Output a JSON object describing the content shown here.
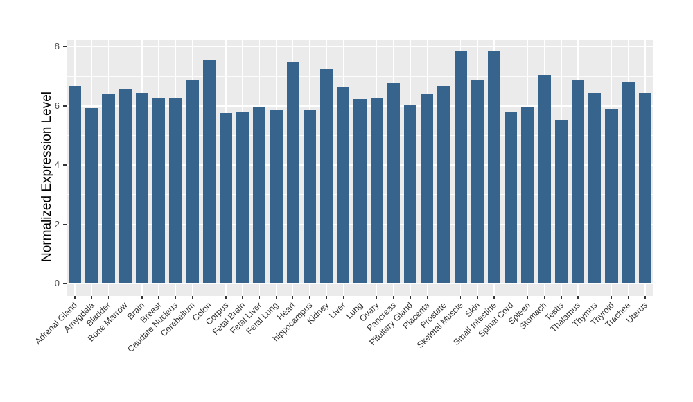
{
  "chart_data": {
    "type": "bar",
    "title": "",
    "xlabel": "",
    "ylabel": "Normalized Expression Level",
    "categories": [
      "Adrenal Gland",
      "Amygdala",
      "Bladder",
      "Bone Marrow",
      "Brain",
      "Breast",
      "Caudate Nucleus",
      "Cerebellum",
      "Colon",
      "Corpus",
      "Fetal Brain",
      "Fetal Liver",
      "Fetal Lung",
      "Heart",
      "hippocampus",
      "Kidney",
      "Liver",
      "Lung",
      "Ovary",
      "Pancreas",
      "Pituitary Gland",
      "Placenta",
      "Prostate",
      "Skeletal Muscle",
      "Skin",
      "Small Intestine",
      "Spinal Cord",
      "Spleen",
      "Stomach",
      "Testis",
      "Thalamus",
      "Thymus",
      "Thyroid",
      "Trachea",
      "Uterus"
    ],
    "values": [
      6.68,
      5.92,
      6.41,
      6.58,
      6.45,
      6.27,
      6.27,
      6.89,
      7.53,
      5.75,
      5.8,
      5.94,
      5.88,
      7.49,
      5.85,
      7.26,
      6.64,
      6.24,
      6.26,
      6.77,
      6.02,
      6.41,
      6.68,
      7.85,
      6.89,
      7.85,
      5.78,
      5.95,
      7.05,
      5.52,
      6.86,
      6.45,
      5.9,
      6.79,
      6.45
    ],
    "ylim": [
      0,
      8.4
    ],
    "yticks": [
      0,
      2,
      4,
      6,
      8
    ],
    "yticks_minor": [
      1,
      3,
      5,
      7
    ],
    "legend": "none",
    "grid": "white major and minor gridlines on gray panel",
    "colors": {
      "bar": "#36648C",
      "panel_bg": "#EBEBEB",
      "grid_major": "#FFFFFF",
      "grid_minor": "#FFFFFF",
      "axis_text": "#333333",
      "axis_title": "#000000"
    }
  }
}
